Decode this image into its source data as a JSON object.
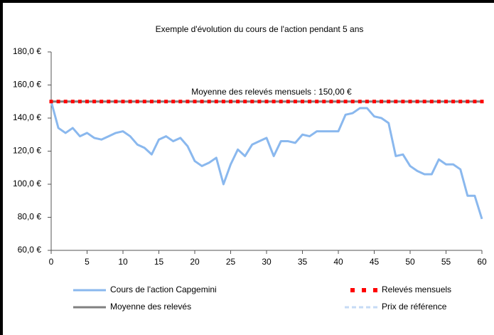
{
  "chart_data": {
    "type": "line",
    "title": "Exemple d'évolution du cours de l'action pendant 5 ans",
    "annotation": "Moyenne des relevés mensuels : 150,00 €",
    "x": [
      0,
      1,
      2,
      3,
      4,
      5,
      6,
      7,
      8,
      9,
      10,
      11,
      12,
      13,
      14,
      15,
      16,
      17,
      18,
      19,
      20,
      21,
      22,
      23,
      24,
      25,
      26,
      27,
      28,
      29,
      30,
      31,
      32,
      33,
      34,
      35,
      36,
      37,
      38,
      39,
      40,
      41,
      42,
      43,
      44,
      45,
      46,
      47,
      48,
      49,
      50,
      51,
      52,
      53,
      54,
      55,
      56,
      57,
      58,
      59,
      60
    ],
    "series": [
      {
        "name": "Cours de l'action Capgemini",
        "color": "#8ab8ee",
        "style": "line",
        "values": [
          150,
          134,
          131,
          134,
          129,
          131,
          128,
          127,
          129,
          131,
          132,
          129,
          124,
          122,
          118,
          127,
          129,
          126,
          128,
          123,
          114,
          111,
          113,
          116,
          100,
          112,
          121,
          117,
          124,
          126,
          128,
          117,
          126,
          126,
          125,
          130,
          129,
          132,
          132,
          132,
          132,
          142,
          143,
          146,
          146,
          141,
          140,
          137,
          117,
          118,
          111,
          108,
          106,
          106,
          115,
          112,
          112,
          109,
          93,
          93,
          79
        ]
      },
      {
        "name": "Relevés mensuels",
        "color": "#ff0000",
        "style": "markers",
        "values": [
          150,
          150,
          150,
          150,
          150,
          150,
          150,
          150,
          150,
          150,
          150,
          150,
          150,
          150,
          150,
          150,
          150,
          150,
          150,
          150,
          150,
          150,
          150,
          150,
          150,
          150,
          150,
          150,
          150,
          150,
          150,
          150,
          150,
          150,
          150,
          150,
          150,
          150,
          150,
          150,
          150,
          150,
          150,
          150,
          150,
          150,
          150,
          150,
          150,
          150,
          150,
          150,
          150,
          150,
          150,
          150,
          150,
          150,
          150,
          150,
          150
        ]
      },
      {
        "name": "Moyenne des relevés",
        "color": "#808080",
        "style": "line",
        "x": [
          0,
          60
        ],
        "values": [
          150,
          150
        ]
      },
      {
        "name": "Prix de référence",
        "color": "#c6dbf5",
        "style": "dash",
        "x": [
          0,
          60
        ],
        "values": [
          150,
          150
        ]
      }
    ],
    "xlim": [
      0,
      60
    ],
    "xticks": [
      0,
      5,
      10,
      15,
      20,
      25,
      30,
      35,
      40,
      45,
      50,
      55,
      60
    ],
    "ylim": [
      60,
      180
    ],
    "yticks": [
      {
        "value": 60,
        "label": "60,0 €"
      },
      {
        "value": 80,
        "label": "80,0 €"
      },
      {
        "value": 100,
        "label": "100,0 €"
      },
      {
        "value": 120,
        "label": "120,0 €"
      },
      {
        "value": 140,
        "label": "140,0 €"
      },
      {
        "value": 160,
        "label": "160,0 €"
      },
      {
        "value": 180,
        "label": "180,0 €"
      }
    ]
  }
}
